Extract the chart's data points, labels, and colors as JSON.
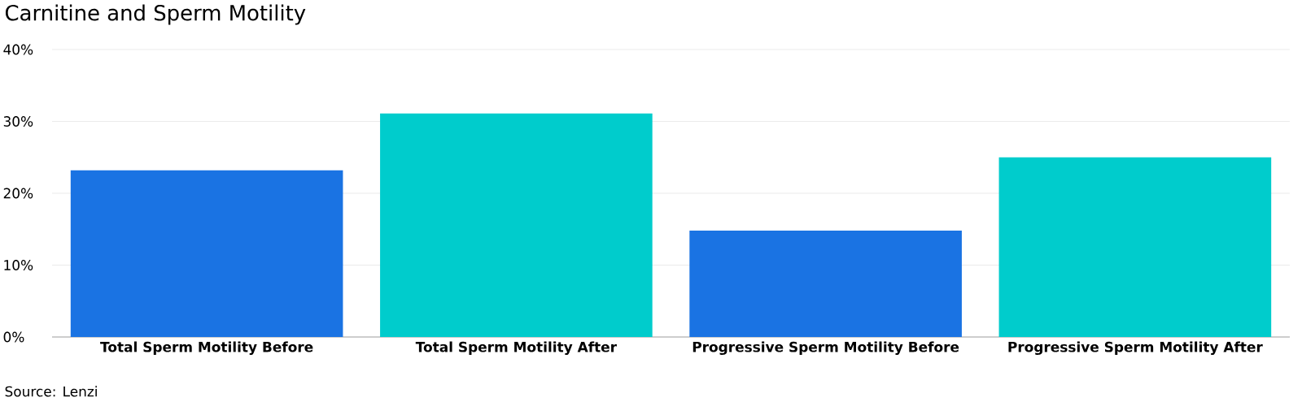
{
  "chart_data": {
    "type": "bar",
    "title": "Carnitine and Sperm Motility",
    "categories": [
      "Total Sperm Motility Before",
      "Total Sperm Motility After",
      "Progressive Sperm Motility Before",
      "Progressive Sperm Motility After"
    ],
    "values": [
      23.2,
      31.1,
      14.8,
      25
    ],
    "colors": [
      "#1a73e3",
      "#00cccc",
      "#1a73e3",
      "#00cccc"
    ],
    "ylim": [
      0,
      40
    ],
    "yticks": [
      {
        "value": 0,
        "label": "0%"
      },
      {
        "value": 10,
        "label": "10%"
      },
      {
        "value": 20,
        "label": "20%"
      },
      {
        "value": 30,
        "label": "30%"
      },
      {
        "value": 40,
        "label": "40%"
      }
    ],
    "grid": "y",
    "annotations": [
      "Source: Lenzi"
    ]
  }
}
